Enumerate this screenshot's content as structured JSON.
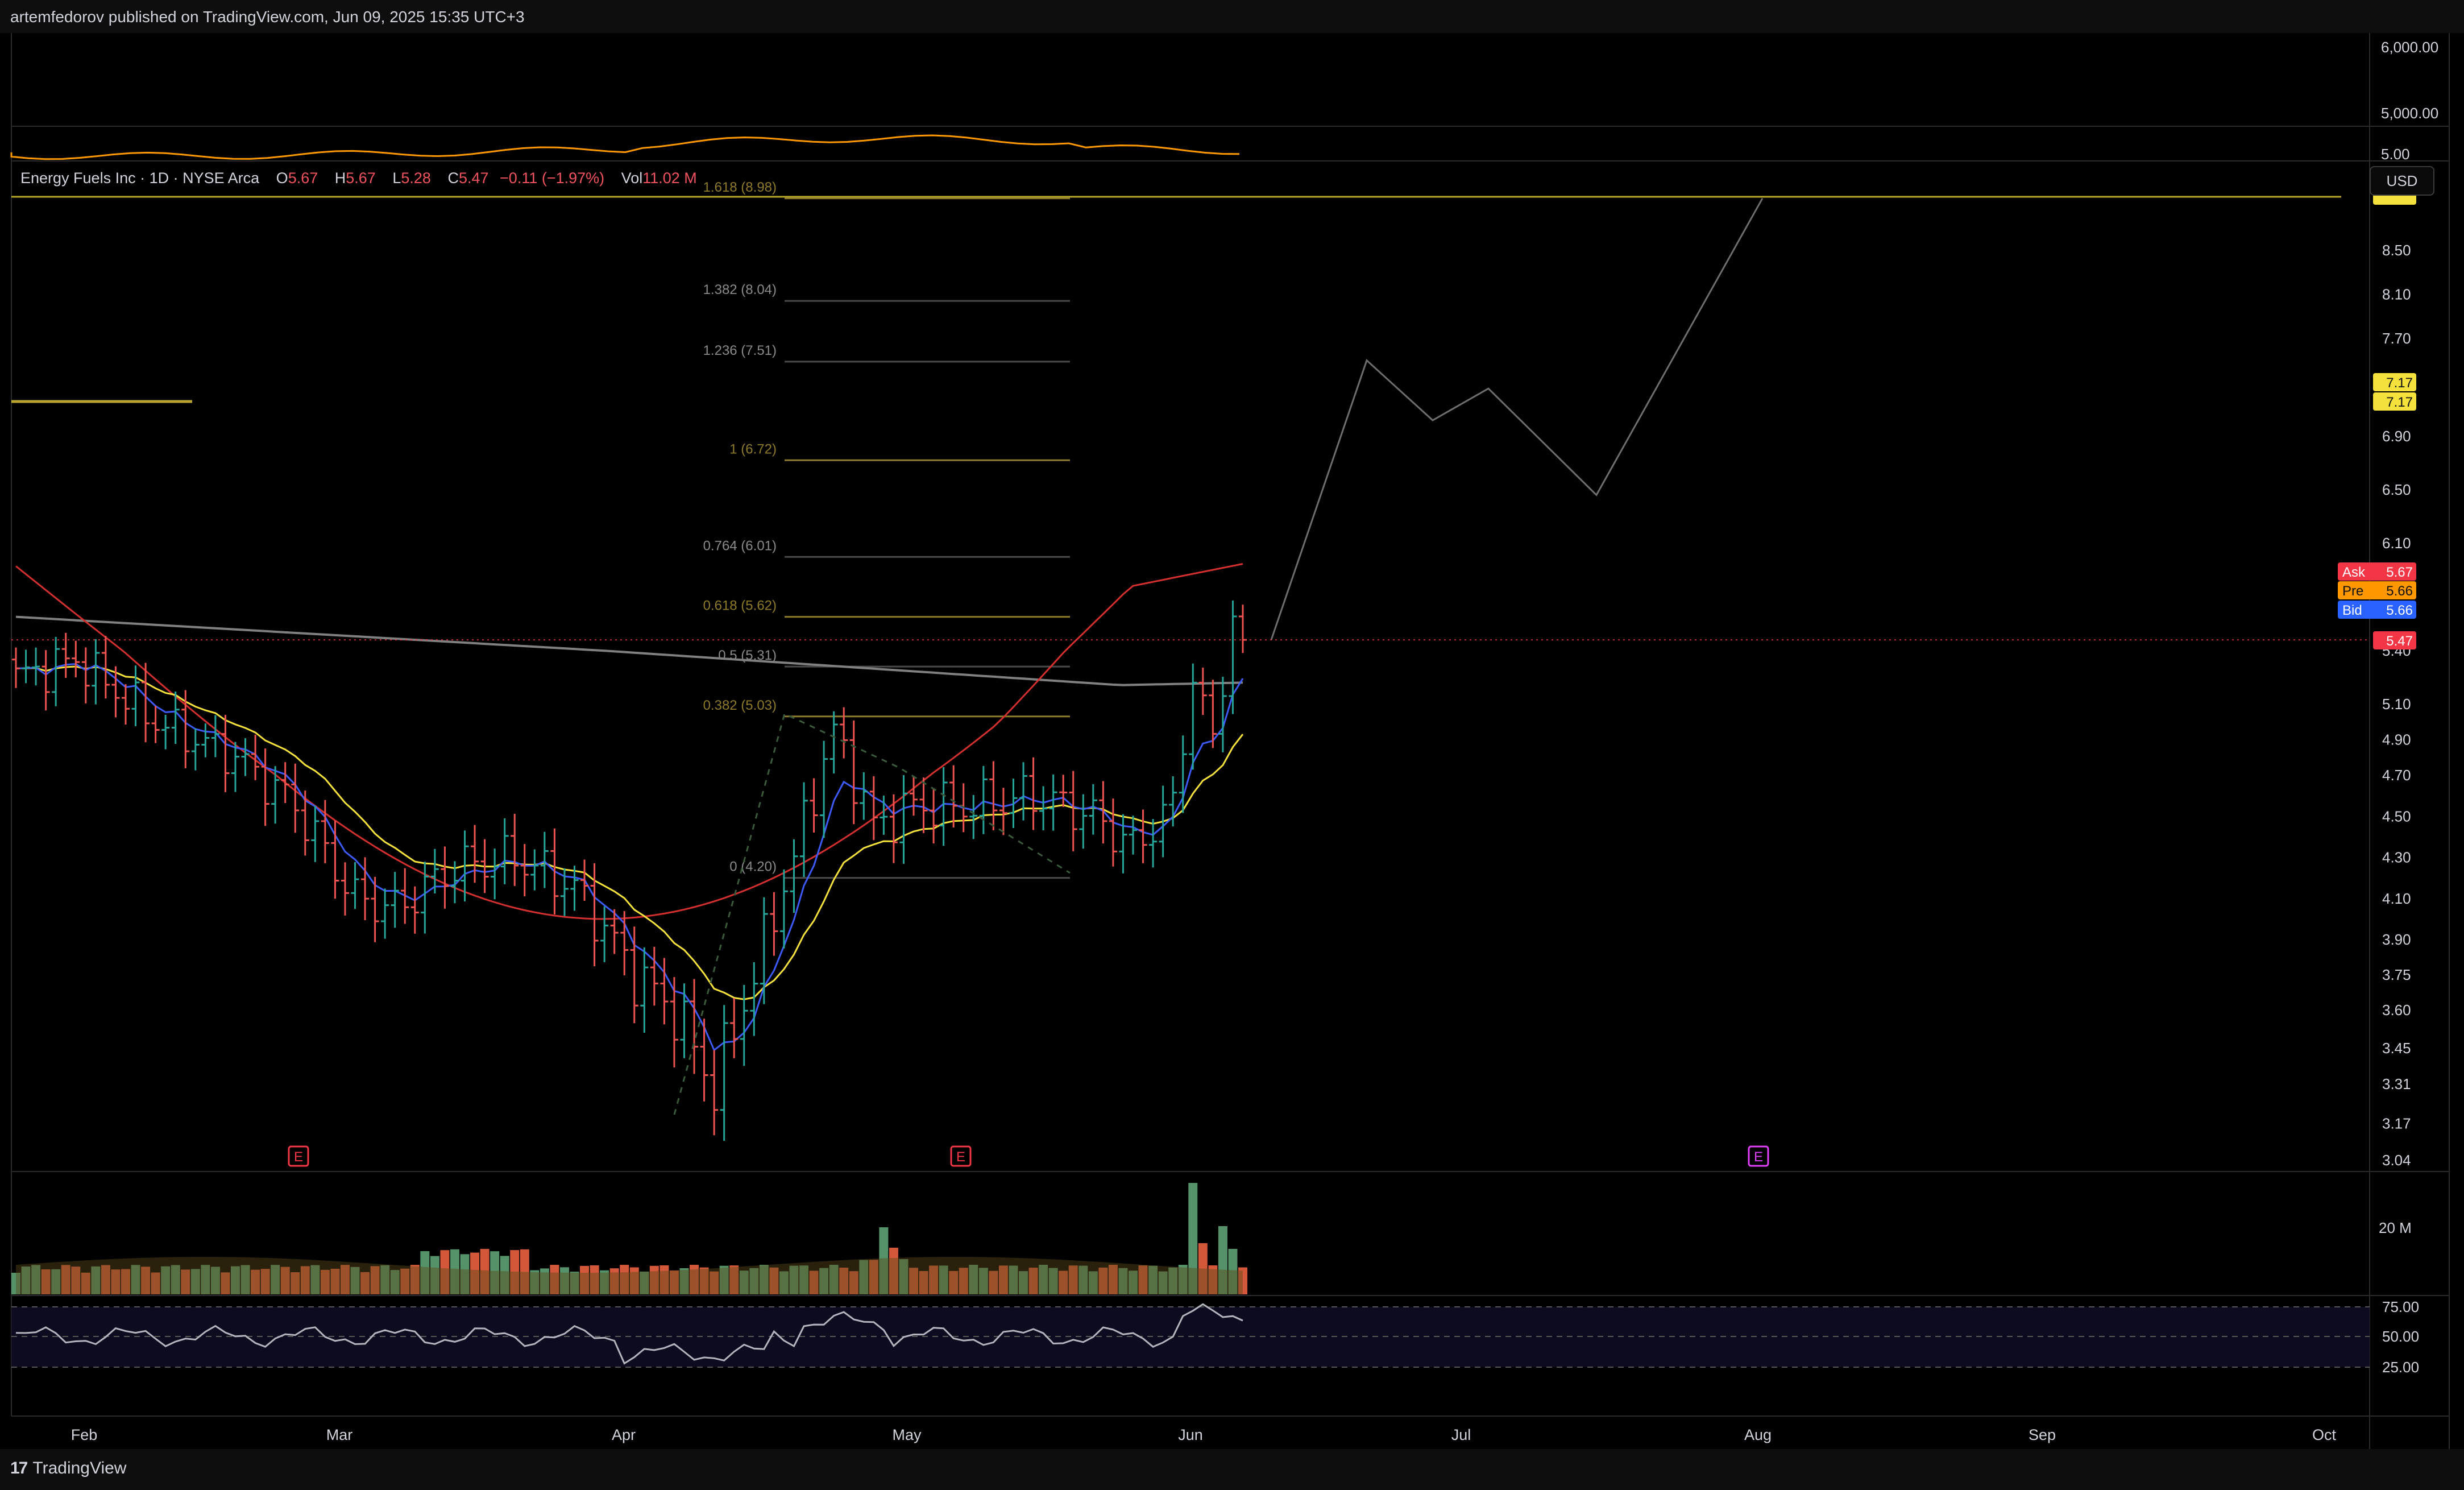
{
  "publish_line": "artemfedorov published on TradingView.com, Jun 09, 2025 15:35 UTC+3",
  "brand": "TradingView",
  "currency": "USD",
  "legend": {
    "title": "Energy Fuels Inc · 1D · NYSE Arca",
    "open_label": "O",
    "open": "5.67",
    "high_label": "H",
    "high": "5.67",
    "low_label": "L",
    "low": "5.28",
    "close_label": "C",
    "close": "5.47",
    "change": "−0.11 (−1.97%)",
    "vol_label": "Vol",
    "vol": "11.02 M"
  },
  "colors": {
    "up": "#26a69a",
    "down": "#ef5350",
    "ema_fast": "#3d5afe",
    "ema_mid": "#f5e13b",
    "ema_red": "#d32f2f",
    "ma_grey": "#808080",
    "fib_line": "#4a4a4a",
    "fib_gold": "#8d7a2a",
    "rsi_line": "#b2b5be",
    "ask": "#f23645",
    "pre": "#ff9800",
    "bid": "#2962ff",
    "last": "#f23645",
    "target": "#f5e13b",
    "earnings_red": "#f23645",
    "earnings_purple": "#e040fb"
  },
  "chart_data": {
    "type": "candlestick",
    "symbol": "Energy Fuels Inc",
    "interval": "1D",
    "exchange": "NYSE Arca",
    "x_axis_labels": [
      "Feb",
      "Mar",
      "Apr",
      "May",
      "Jun",
      "Jul",
      "Aug",
      "Sep",
      "Oct"
    ],
    "y_axis_ticks": [
      "8.50",
      "8.10",
      "7.70",
      "6.90",
      "6.50",
      "6.10",
      "5.40",
      "5.10",
      "4.90",
      "4.70",
      "4.50",
      "4.30",
      "4.10",
      "3.90",
      "3.75",
      "3.60",
      "3.45",
      "3.31",
      "3.17",
      "3.04"
    ],
    "upper_pane_ticks": [
      "6,000.00",
      "5,000.00",
      "5.00"
    ],
    "price_badges": [
      {
        "label": "",
        "value": "7.17"
      },
      {
        "label": "",
        "value": "7.17"
      },
      {
        "label": "Ask",
        "value": "5.67"
      },
      {
        "label": "Pre",
        "value": "5.66"
      },
      {
        "label": "Bid",
        "value": "5.66"
      },
      {
        "label": "",
        "value": "5.47"
      }
    ],
    "fib_levels": [
      {
        "ratio": "1.618",
        "price": "8.98",
        "label": "1.618 (8.98)"
      },
      {
        "ratio": "1.382",
        "price": "8.04",
        "label": "1.382 (8.04)"
      },
      {
        "ratio": "1.236",
        "price": "7.51",
        "label": "1.236 (7.51)"
      },
      {
        "ratio": "1",
        "price": "6.72",
        "label": "1 (6.72)"
      },
      {
        "ratio": "0.764",
        "price": "6.01",
        "label": "0.764 (6.01)"
      },
      {
        "ratio": "0.618",
        "price": "5.62",
        "label": "0.618 (5.62)"
      },
      {
        "ratio": "0.5",
        "price": "5.31",
        "label": "0.5 (5.31)"
      },
      {
        "ratio": "0.382",
        "price": "5.03",
        "label": "0.382 (5.03)"
      },
      {
        "ratio": "0",
        "price": "4.20",
        "label": "0 (4.20)"
      }
    ],
    "earnings_markers": [
      {
        "label": "E"
      },
      {
        "label": "E"
      },
      {
        "label": "E"
      }
    ],
    "projection_path": [
      5.47,
      7.52,
      7.03,
      7.29,
      6.46,
      8.98
    ],
    "volume_axis_tick": "20 M",
    "rsi_ticks": [
      "75.00",
      "50.00",
      "25.00"
    ],
    "last_price": 5.47
  }
}
